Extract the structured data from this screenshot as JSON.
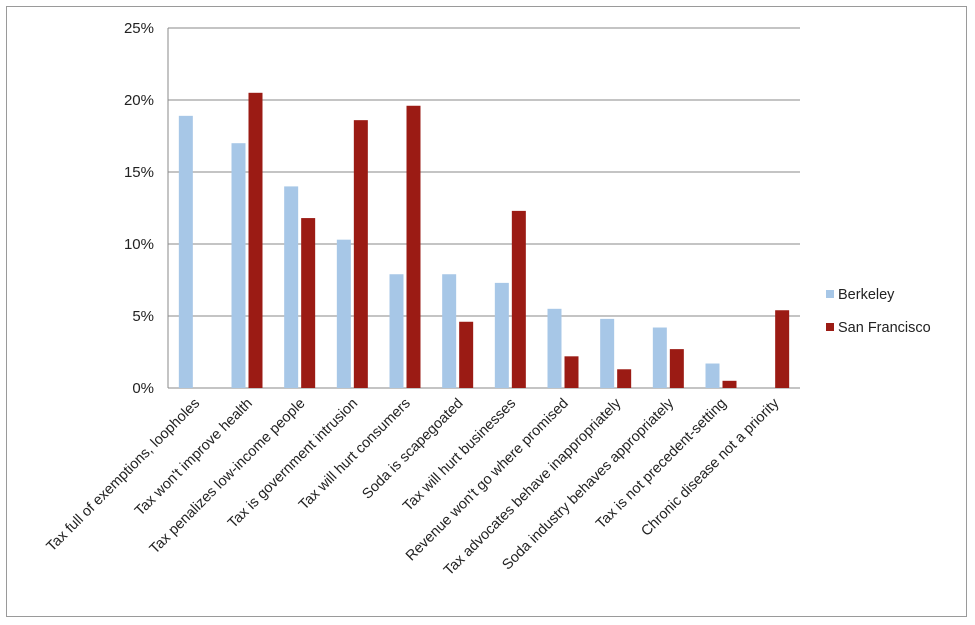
{
  "chart_data": {
    "type": "bar",
    "title": "",
    "xlabel": "",
    "ylabel": "",
    "ylim": [
      0,
      25
    ],
    "y_ticks": [
      "0%",
      "5%",
      "10%",
      "15%",
      "20%",
      "25%"
    ],
    "y_tick_values": [
      0,
      5,
      10,
      15,
      20,
      25
    ],
    "grid": true,
    "legend_position": "right",
    "categories": [
      "Tax full of exemptions, loopholes",
      "Tax won't improve health",
      "Tax penalizes low-income people",
      "Tax is government intrusion",
      "Tax will hurt consumers",
      "Soda is scapegoated",
      "Tax will hurt businesses",
      "Revenue won't go where promised",
      "Tax advocates behave inappropriately",
      "Soda industry behaves appropriately",
      "Tax is not precedent-setting",
      "Chronic disease not a priority"
    ],
    "series": [
      {
        "name": "Berkeley",
        "color": "#a7c7e7",
        "values": [
          18.9,
          17.0,
          14.0,
          10.3,
          7.9,
          7.9,
          7.3,
          5.5,
          4.8,
          4.2,
          1.7,
          0
        ]
      },
      {
        "name": "San Francisco",
        "color": "#9b1b14",
        "values": [
          0,
          20.5,
          11.8,
          18.6,
          19.6,
          4.6,
          12.3,
          2.2,
          1.3,
          2.7,
          0.5,
          5.4
        ]
      }
    ]
  }
}
